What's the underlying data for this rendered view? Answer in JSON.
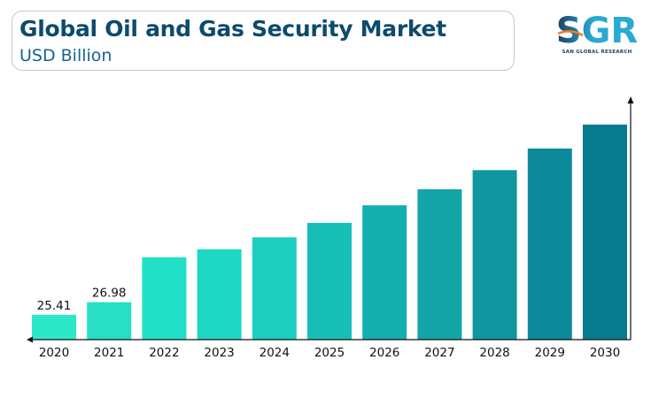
{
  "header": {
    "title": "Global Oil and Gas Security Market",
    "subtitle": "USD Billion"
  },
  "logo": {
    "mark": "SGR",
    "tagline": "SAN GLOBAL RESEARCH"
  },
  "chart_data": {
    "type": "bar",
    "categories": [
      "2020",
      "2021",
      "2022",
      "2023",
      "2024",
      "2025",
      "2026",
      "2027",
      "2028",
      "2029",
      "2030"
    ],
    "values": [
      25.41,
      26.98,
      32.6,
      33.6,
      35.1,
      36.9,
      39.1,
      41.1,
      43.5,
      46.2,
      49.2
    ],
    "data_labels": [
      "25.41",
      "26.98",
      "",
      "",
      "",
      "",
      "",
      "",
      "",
      "",
      ""
    ],
    "title": "Global Oil and Gas Security Market",
    "subtitle": "USD Billion",
    "xlabel": "",
    "ylabel": "",
    "ylim": [
      22.3,
      52.5
    ],
    "grid": false,
    "legend": "none",
    "colors": [
      "#2de8c8",
      "#26dfc4",
      "#22e0c8",
      "#1fd8c4",
      "#1ccfbf",
      "#18bfb7",
      "#14aeaf",
      "#12a4a6",
      "#0f969f",
      "#0c8a99",
      "#087b8e"
    ]
  }
}
